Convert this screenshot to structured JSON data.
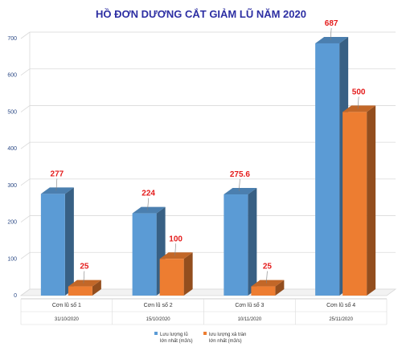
{
  "chart_data": {
    "type": "bar",
    "title": "HỒ ĐƠN DƯƠNG CẮT GIẢM LŨ NĂM 2020",
    "categories": [
      "Cơn lũ số 1",
      "Cơn lũ số 2",
      "Cơn lũ số 3",
      "Cơn lũ số 4"
    ],
    "dates": [
      "31/10/2020",
      "15/10/2020",
      "10/11/2020",
      "25/11/2020"
    ],
    "series": [
      {
        "name": "Lưu lượng lũ lớn nhất (m3/s)",
        "values": [
          277,
          224,
          275.6,
          687
        ],
        "labels": [
          "277",
          "224",
          "275.6",
          "687"
        ],
        "color": "#5b9bd5"
      },
      {
        "name": "lưu lượng xả tràn lớn nhất (m3/s)",
        "values": [
          25,
          100,
          25,
          500
        ],
        "labels": [
          "25",
          "100",
          "25",
          "500"
        ],
        "color": "#ed7d31"
      }
    ],
    "yticks": [
      0,
      100,
      200,
      300,
      400,
      500,
      600,
      700
    ],
    "ylim": [
      0,
      700
    ],
    "grid": true,
    "legend_position": "bottom-center",
    "value_label_color": "#e41b1b"
  }
}
